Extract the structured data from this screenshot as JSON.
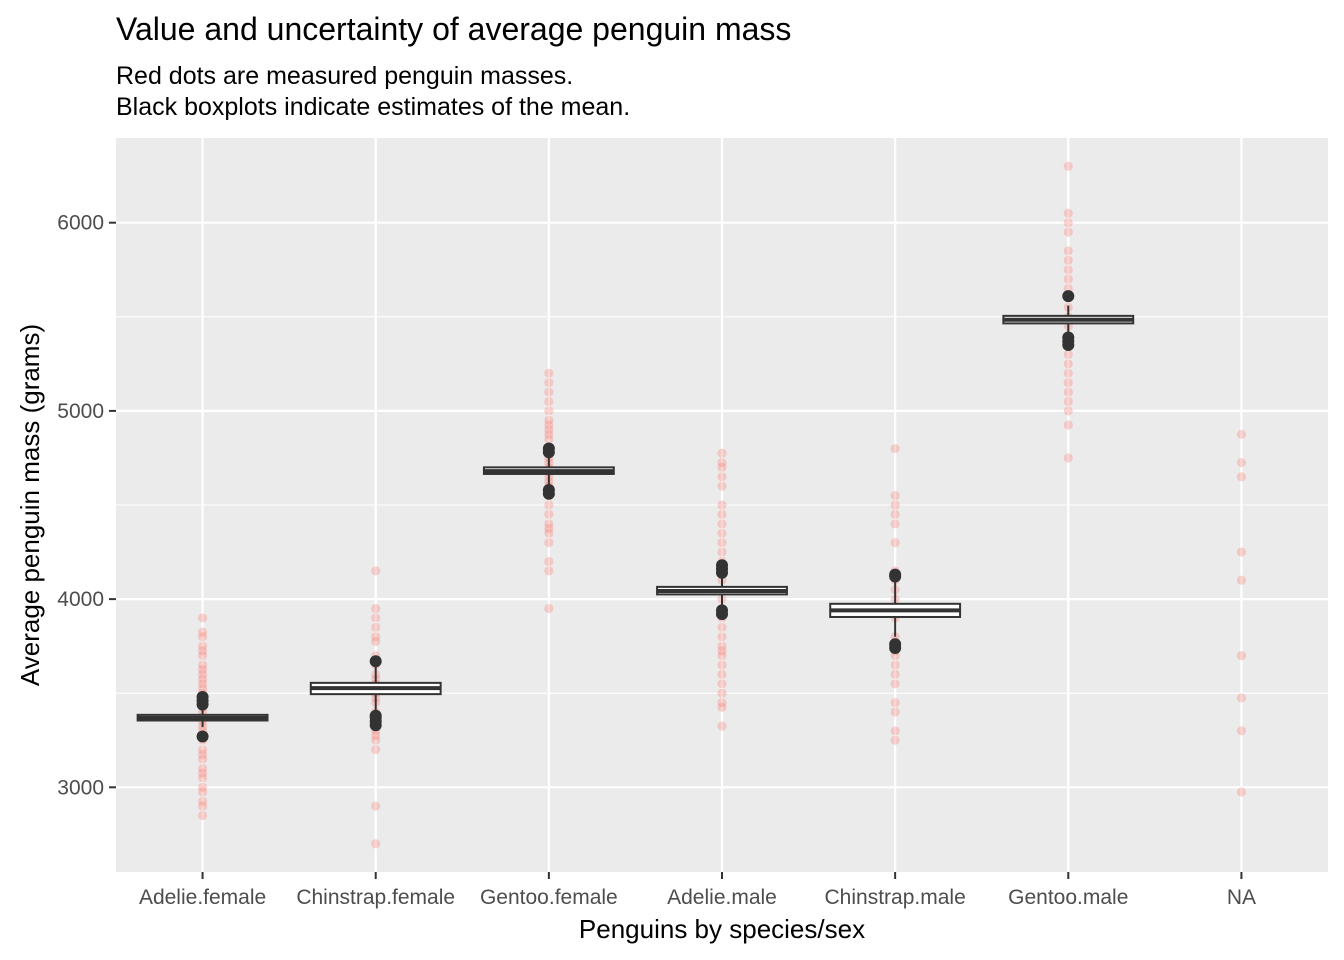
{
  "chart_data": {
    "type": "boxplot",
    "title": "Value and uncertainty of average penguin mass",
    "subtitle_lines": [
      "Red dots are measured penguin masses.",
      "Black boxplots indicate estimates of the mean."
    ],
    "xlabel": "Penguins by species/sex",
    "ylabel": "Average penguin mass (grams)",
    "ylim": [
      2550,
      6450
    ],
    "y_ticks": [
      3000,
      4000,
      5000,
      6000
    ],
    "grid": true,
    "colors": {
      "panel": "#ebebeb",
      "grid": "#ffffff",
      "points": "#f8766d",
      "box": "#333333"
    },
    "categories": [
      {
        "label": "Adelie.female",
        "points": [
          2850,
          2900,
          2925,
          2975,
          3000,
          3050,
          3075,
          3100,
          3150,
          3175,
          3200,
          3250,
          3275,
          3300,
          3325,
          3350,
          3400,
          3425,
          3450,
          3475,
          3500,
          3525,
          3550,
          3575,
          3600,
          3625,
          3650,
          3700,
          3725,
          3750,
          3800,
          3825,
          3900
        ],
        "box": {
          "q1": 3355,
          "median": 3369,
          "q3": 3385,
          "lower": 3320,
          "upper": 3420
        },
        "outliers": [
          3270,
          3440,
          3460,
          3480
        ]
      },
      {
        "label": "Chinstrap.female",
        "points": [
          2700,
          2900,
          3200,
          3250,
          3275,
          3300,
          3325,
          3350,
          3400,
          3450,
          3475,
          3500,
          3525,
          3550,
          3575,
          3600,
          3650,
          3675,
          3700,
          3775,
          3800,
          3850,
          3900,
          3950,
          4150
        ],
        "box": {
          "q1": 3495,
          "median": 3527,
          "q3": 3555,
          "lower": 3400,
          "upper": 3640
        },
        "outliers": [
          3330,
          3350,
          3370,
          3380,
          3670
        ]
      },
      {
        "label": "Gentoo.female",
        "points": [
          3950,
          4150,
          4200,
          4300,
          4350,
          4375,
          4400,
          4450,
          4500,
          4550,
          4575,
          4600,
          4625,
          4650,
          4675,
          4700,
          4725,
          4750,
          4775,
          4800,
          4850,
          4875,
          4900,
          4925,
          4950,
          5000,
          5050,
          5100,
          5150,
          5200
        ],
        "box": {
          "q1": 4665,
          "median": 4680,
          "q3": 4700,
          "lower": 4610,
          "upper": 4750
        },
        "outliers": [
          4560,
          4580,
          4780,
          4800
        ]
      },
      {
        "label": "Adelie.male",
        "points": [
          3325,
          3425,
          3450,
          3500,
          3550,
          3600,
          3650,
          3700,
          3725,
          3750,
          3800,
          3850,
          3900,
          3950,
          4000,
          4050,
          4100,
          4150,
          4200,
          4250,
          4300,
          4350,
          4400,
          4450,
          4500,
          4600,
          4650,
          4700,
          4725,
          4775
        ],
        "box": {
          "q1": 4025,
          "median": 4043,
          "q3": 4065,
          "lower": 3960,
          "upper": 4120
        },
        "outliers": [
          3920,
          3940,
          4140,
          4160,
          4180
        ]
      },
      {
        "label": "Chinstrap.male",
        "points": [
          3250,
          3300,
          3400,
          3450,
          3550,
          3600,
          3650,
          3700,
          3725,
          3750,
          3775,
          3800,
          3900,
          3950,
          4000,
          4050,
          4100,
          4150,
          4300,
          4400,
          4450,
          4500,
          4550,
          4800
        ],
        "box": {
          "q1": 3905,
          "median": 3940,
          "q3": 3975,
          "lower": 3800,
          "upper": 4090
        },
        "outliers": [
          3740,
          3760,
          4120,
          4130
        ]
      },
      {
        "label": "Gentoo.male",
        "points": [
          4750,
          4925,
          5000,
          5050,
          5100,
          5150,
          5200,
          5250,
          5300,
          5350,
          5400,
          5450,
          5500,
          5550,
          5600,
          5650,
          5700,
          5750,
          5800,
          5850,
          5950,
          6000,
          6050,
          6300
        ],
        "box": {
          "q1": 5465,
          "median": 5484,
          "q3": 5505,
          "lower": 5410,
          "upper": 5560
        },
        "outliers": [
          5350,
          5370,
          5390,
          5610
        ]
      },
      {
        "label": "NA",
        "points": [
          2975,
          3300,
          3475,
          3700,
          4100,
          4250,
          4650,
          4725,
          4875
        ],
        "box": null,
        "outliers": []
      }
    ]
  }
}
